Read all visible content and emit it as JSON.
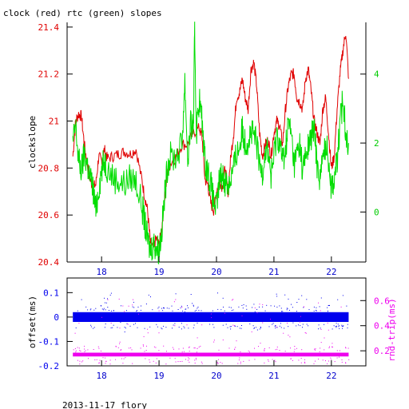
{
  "chart_data": [
    {
      "type": "line",
      "title": "clock (red) rtc (green) slopes",
      "xlabel": "",
      "ylabel": "clockslope",
      "xlim": [
        17.4,
        22.6
      ],
      "ylim": [
        20.4,
        21.42
      ],
      "ylim_right": [
        -1.45,
        5.5
      ],
      "x_ticks": [
        18,
        19,
        20,
        21,
        22
      ],
      "y_ticks": [
        20.4,
        20.6,
        20.8,
        21,
        21.2,
        21.4
      ],
      "y_ticks_right": [
        0,
        2,
        4
      ],
      "grid": false,
      "colors": {
        "axes": "#000000",
        "left_axis": "#e00000",
        "right_axis": "#00cc00"
      },
      "series": [
        {
          "color": "#e00000",
          "axis": "left",
          "x": [
            17.5,
            17.55,
            17.6,
            17.65,
            17.7,
            17.75,
            17.8,
            17.85,
            17.9,
            17.95,
            18.0,
            18.05,
            18.1,
            18.2,
            18.3,
            18.4,
            18.5,
            18.6,
            18.7,
            18.75,
            18.8,
            18.85,
            18.9,
            18.95,
            19.0,
            19.05,
            19.1,
            19.15,
            19.2,
            19.3,
            19.4,
            19.5,
            19.6,
            19.7,
            19.75,
            19.8,
            19.85,
            19.9,
            19.95,
            20.0,
            20.05,
            20.1,
            20.15,
            20.2,
            20.25,
            20.3,
            20.35,
            20.4,
            20.45,
            20.5,
            20.55,
            20.6,
            20.65,
            20.7,
            20.75,
            20.8,
            20.85,
            20.9,
            20.95,
            21.0,
            21.05,
            21.1,
            21.15,
            21.2,
            21.25,
            21.3,
            21.35,
            21.4,
            21.45,
            21.5,
            21.55,
            21.6,
            21.65,
            21.7,
            21.75,
            21.8,
            21.85,
            21.9,
            21.95,
            22.0,
            22.05,
            22.1,
            22.15,
            22.2,
            22.25,
            22.3
          ],
          "y": [
            20.85,
            21.0,
            21.03,
            21.02,
            20.9,
            20.82,
            20.75,
            20.72,
            20.73,
            20.85,
            20.83,
            20.88,
            20.84,
            20.85,
            20.86,
            20.87,
            20.86,
            20.88,
            20.75,
            20.68,
            20.62,
            20.48,
            20.46,
            20.5,
            20.47,
            20.55,
            20.68,
            20.78,
            20.82,
            20.85,
            20.9,
            20.9,
            20.95,
            20.97,
            20.93,
            20.75,
            20.73,
            20.65,
            20.62,
            20.7,
            20.75,
            20.72,
            20.8,
            20.7,
            20.85,
            20.95,
            21.1,
            21.12,
            21.18,
            21.1,
            21.05,
            21.22,
            21.25,
            21.15,
            20.95,
            20.85,
            20.9,
            20.92,
            20.85,
            20.95,
            21.0,
            20.98,
            20.9,
            21.05,
            21.15,
            21.2,
            21.2,
            21.1,
            21.08,
            21.05,
            21.18,
            21.22,
            21.12,
            21.0,
            20.95,
            20.9,
            21.05,
            21.1,
            20.95,
            20.8,
            20.85,
            21.05,
            21.2,
            21.3,
            21.38,
            21.18
          ]
        },
        {
          "color": "#00dd00",
          "axis": "right",
          "x": [
            17.5,
            17.55,
            17.6,
            17.65,
            17.7,
            17.75,
            17.8,
            17.85,
            17.9,
            17.95,
            18.0,
            18.05,
            18.1,
            18.2,
            18.3,
            18.4,
            18.5,
            18.6,
            18.7,
            18.75,
            18.8,
            18.85,
            18.9,
            18.95,
            19.0,
            19.05,
            19.1,
            19.15,
            19.2,
            19.3,
            19.4,
            19.45,
            19.5,
            19.55,
            19.6,
            19.62,
            19.65,
            19.7,
            19.75,
            19.8,
            19.85,
            19.9,
            19.95,
            20.0,
            20.05,
            20.1,
            20.15,
            20.2,
            20.25,
            20.3,
            20.35,
            20.4,
            20.45,
            20.5,
            20.55,
            20.6,
            20.65,
            20.7,
            20.75,
            20.8,
            20.85,
            20.9,
            20.95,
            21.0,
            21.05,
            21.1,
            21.15,
            21.2,
            21.25,
            21.3,
            21.35,
            21.4,
            21.45,
            21.5,
            21.55,
            21.6,
            21.65,
            21.7,
            21.75,
            21.8,
            21.85,
            21.9,
            21.95,
            22.0,
            22.05,
            22.1,
            22.15,
            22.2,
            22.25,
            22.3
          ],
          "y": [
            2.0,
            2.5,
            1.5,
            1.2,
            1.7,
            1.4,
            1.0,
            0.7,
            0.0,
            0.7,
            1.2,
            1.5,
            1.3,
            1.0,
            0.9,
            0.8,
            1.0,
            0.9,
            0.2,
            -0.3,
            -0.8,
            -1.1,
            -0.9,
            -1.0,
            -1.1,
            -0.5,
            0.5,
            1.4,
            1.6,
            1.6,
            2.0,
            3.8,
            1.5,
            2.5,
            2.5,
            5.3,
            2.3,
            3.3,
            2.6,
            1.5,
            1.2,
            0.8,
            0.3,
            0.1,
            0.9,
            1.1,
            0.9,
            0.8,
            1.0,
            1.3,
            1.7,
            1.9,
            2.4,
            2.0,
            2.1,
            2.3,
            2.2,
            2.0,
            1.3,
            1.2,
            1.8,
            1.8,
            1.0,
            1.6,
            2.3,
            2.0,
            1.5,
            1.8,
            2.6,
            2.3,
            1.4,
            1.7,
            2.0,
            1.2,
            1.6,
            1.9,
            2.2,
            2.4,
            1.4,
            1.0,
            1.5,
            2.0,
            1.6,
            0.7,
            1.0,
            1.5,
            2.5,
            3.3,
            2.4,
            2.0
          ]
        }
      ]
    },
    {
      "type": "scatter",
      "title": "",
      "xlabel": "",
      "ylabel": "offset(ms)",
      "ylabel_right": "rnd-trip(ms)",
      "xlim": [
        17.4,
        22.6
      ],
      "ylim": [
        -0.2,
        0.16
      ],
      "ylim_right": [
        0.08,
        0.78
      ],
      "x_ticks": [
        18,
        19,
        20,
        21,
        22
      ],
      "y_ticks": [
        -0.2,
        -0.1,
        0,
        0.1
      ],
      "y_ticks_right": [
        0.2,
        0.4,
        0.6
      ],
      "grid": false,
      "colors": {
        "axes": "#000000",
        "left_axis": "#0000ee",
        "right_axis": "#ee00ee"
      },
      "series": [
        {
          "color": "#0000ee",
          "axis": "left",
          "x_range": [
            17.5,
            22.3
          ],
          "center": 0.0,
          "band_halfwidth": 0.02,
          "outlier_range": [
            -0.06,
            0.1
          ]
        },
        {
          "color": "#ee00ee",
          "axis": "right",
          "x_range": [
            17.5,
            22.3
          ],
          "center": 0.17,
          "band_halfwidth": 0.015,
          "outlier_range": [
            0.12,
            0.62
          ]
        }
      ]
    }
  ],
  "footer": {
    "text": "2013-11-17 flory"
  }
}
